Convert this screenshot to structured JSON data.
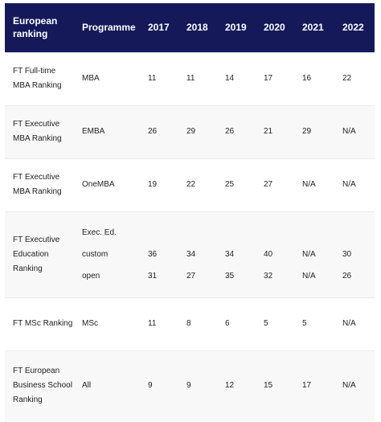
{
  "header": {
    "ranking": "European ranking",
    "programme": "Programme",
    "years": [
      "2017",
      "2018",
      "2019",
      "2020",
      "2021",
      "2022"
    ]
  },
  "rows": [
    {
      "ranking": "FT Full-time MBA Ranking",
      "programme": "MBA",
      "values": [
        "11",
        "11",
        "14",
        "17",
        "16",
        "22"
      ]
    },
    {
      "ranking": "FT Executive MBA Ranking",
      "programme": "EMBA",
      "values": [
        "26",
        "29",
        "26",
        "21",
        "29",
        "N/A"
      ]
    },
    {
      "ranking": "FT Executive MBA Ranking",
      "programme": "OneMBA",
      "values": [
        "19",
        "22",
        "25",
        "27",
        "N/A",
        "N/A"
      ]
    },
    {
      "ranking": "FT Executive Education Ranking",
      "programme_group": "Exec. Ed.",
      "subrows": [
        {
          "programme": "custom",
          "values": [
            "36",
            "34",
            "34",
            "40",
            "N/A",
            "30"
          ]
        },
        {
          "programme": "open",
          "values": [
            "31",
            "27",
            "35",
            "32",
            "N/A",
            "26"
          ]
        }
      ]
    },
    {
      "ranking": "FT MSc Ranking",
      "programme": "MSc",
      "values": [
        "11",
        "8",
        "6",
        "5",
        "5",
        "N/A"
      ]
    },
    {
      "ranking": "FT European Business School Ranking",
      "programme": "All",
      "values": [
        "9",
        "9",
        "12",
        "15",
        "17",
        "N/A"
      ]
    }
  ]
}
